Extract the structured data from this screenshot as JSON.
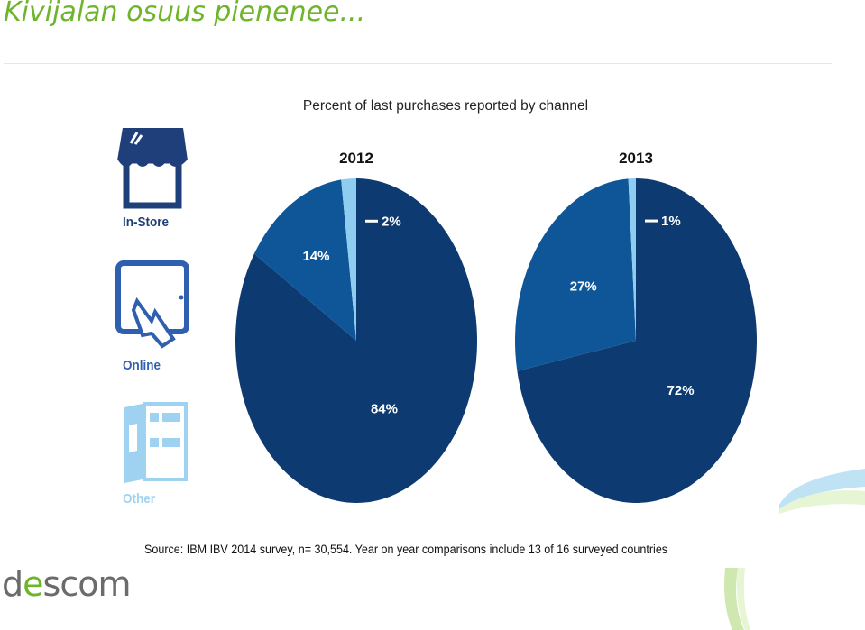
{
  "slide_title": "Kivijalan osuus pienenee...",
  "legend": [
    {
      "label": "In-Store",
      "color": "#0d3a70",
      "icon": "store-icon"
    },
    {
      "label": "Online",
      "color": "#2f6fb3",
      "icon": "tablet-touch-icon"
    },
    {
      "label": "Other",
      "color": "#9ed2f0",
      "icon": "catalog-icon"
    }
  ],
  "chart_data": {
    "type": "pie",
    "title": "Percent of last purchases reported by channel",
    "categories": [
      "In-Store",
      "Online",
      "Other"
    ],
    "colors": [
      "#0d3a70",
      "#0f5699",
      "#8fcdf0"
    ],
    "pies": [
      {
        "name": "2012",
        "values": [
          84,
          14,
          2
        ],
        "labels": [
          "84%",
          "14%",
          "2%"
        ]
      },
      {
        "name": "2013",
        "values": [
          72,
          27,
          1
        ],
        "labels": [
          "72%",
          "27%",
          "1%"
        ]
      }
    ]
  },
  "source": "Source: IBM IBV 2014 survey, n= 30,554. Year on year comparisons include 13 of 16 surveyed countries",
  "logo": {
    "prefix": "d",
    "accent": "e",
    "suffix": "scom"
  }
}
